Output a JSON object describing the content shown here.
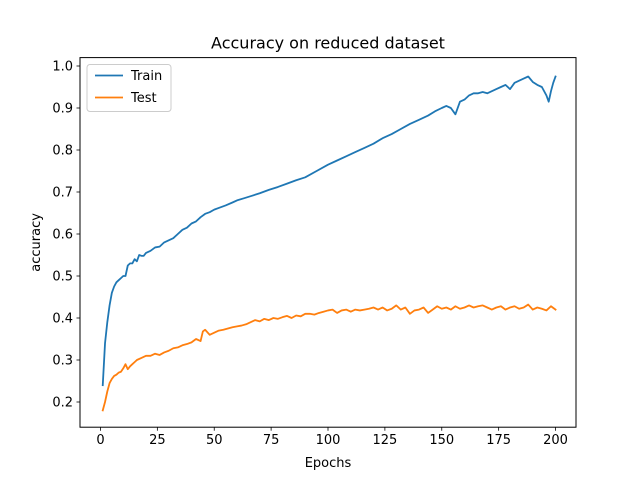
{
  "chart_data": {
    "type": "line",
    "title": "Accuracy on reduced dataset",
    "xlabel": "Epochs",
    "ylabel": "accuracy",
    "xlim": [
      -9,
      209
    ],
    "ylim": [
      0.14,
      1.02
    ],
    "xticks": [
      0,
      25,
      50,
      75,
      100,
      125,
      150,
      175,
      200
    ],
    "yticks": [
      0.2,
      0.3,
      0.4,
      0.5,
      0.6,
      0.7,
      0.8,
      0.9,
      1.0
    ],
    "ytick_labels": [
      "0.2",
      "0.3",
      "0.4",
      "0.5",
      "0.6",
      "0.7",
      "0.8",
      "0.9",
      "1.0"
    ],
    "grid": false,
    "legend_position": "top-left",
    "series": [
      {
        "name": "Train",
        "color": "#1f77b4",
        "points": [
          [
            1,
            0.24
          ],
          [
            2,
            0.34
          ],
          [
            3,
            0.39
          ],
          [
            4,
            0.43
          ],
          [
            5,
            0.46
          ],
          [
            6,
            0.475
          ],
          [
            7,
            0.485
          ],
          [
            8,
            0.49
          ],
          [
            9,
            0.495
          ],
          [
            10,
            0.5
          ],
          [
            11,
            0.5
          ],
          [
            12,
            0.525
          ],
          [
            13,
            0.53
          ],
          [
            14,
            0.53
          ],
          [
            15,
            0.54
          ],
          [
            16,
            0.535
          ],
          [
            17,
            0.55
          ],
          [
            18,
            0.548
          ],
          [
            19,
            0.548
          ],
          [
            20,
            0.555
          ],
          [
            22,
            0.56
          ],
          [
            24,
            0.568
          ],
          [
            26,
            0.57
          ],
          [
            28,
            0.58
          ],
          [
            30,
            0.585
          ],
          [
            32,
            0.59
          ],
          [
            34,
            0.6
          ],
          [
            36,
            0.61
          ],
          [
            38,
            0.615
          ],
          [
            40,
            0.625
          ],
          [
            42,
            0.63
          ],
          [
            44,
            0.64
          ],
          [
            46,
            0.648
          ],
          [
            48,
            0.652
          ],
          [
            50,
            0.658
          ],
          [
            52,
            0.662
          ],
          [
            55,
            0.668
          ],
          [
            58,
            0.675
          ],
          [
            60,
            0.68
          ],
          [
            63,
            0.685
          ],
          [
            66,
            0.69
          ],
          [
            70,
            0.697
          ],
          [
            74,
            0.705
          ],
          [
            78,
            0.712
          ],
          [
            82,
            0.72
          ],
          [
            86,
            0.728
          ],
          [
            90,
            0.735
          ],
          [
            95,
            0.75
          ],
          [
            100,
            0.765
          ],
          [
            104,
            0.775
          ],
          [
            108,
            0.785
          ],
          [
            112,
            0.795
          ],
          [
            116,
            0.805
          ],
          [
            120,
            0.815
          ],
          [
            124,
            0.828
          ],
          [
            128,
            0.838
          ],
          [
            132,
            0.85
          ],
          [
            136,
            0.862
          ],
          [
            140,
            0.872
          ],
          [
            144,
            0.882
          ],
          [
            147,
            0.892
          ],
          [
            150,
            0.9
          ],
          [
            152,
            0.905
          ],
          [
            154,
            0.9
          ],
          [
            156,
            0.885
          ],
          [
            158,
            0.915
          ],
          [
            160,
            0.92
          ],
          [
            162,
            0.93
          ],
          [
            164,
            0.935
          ],
          [
            166,
            0.935
          ],
          [
            168,
            0.938
          ],
          [
            170,
            0.935
          ],
          [
            172,
            0.94
          ],
          [
            174,
            0.945
          ],
          [
            176,
            0.95
          ],
          [
            178,
            0.955
          ],
          [
            180,
            0.945
          ],
          [
            182,
            0.96
          ],
          [
            184,
            0.965
          ],
          [
            186,
            0.97
          ],
          [
            188,
            0.975
          ],
          [
            190,
            0.962
          ],
          [
            192,
            0.955
          ],
          [
            194,
            0.95
          ],
          [
            196,
            0.93
          ],
          [
            197,
            0.915
          ],
          [
            198,
            0.94
          ],
          [
            199,
            0.96
          ],
          [
            200,
            0.975
          ]
        ]
      },
      {
        "name": "Test",
        "color": "#ff7f0e",
        "points": [
          [
            1,
            0.18
          ],
          [
            2,
            0.2
          ],
          [
            3,
            0.225
          ],
          [
            4,
            0.245
          ],
          [
            5,
            0.255
          ],
          [
            6,
            0.262
          ],
          [
            7,
            0.265
          ],
          [
            8,
            0.27
          ],
          [
            9,
            0.272
          ],
          [
            10,
            0.28
          ],
          [
            11,
            0.29
          ],
          [
            12,
            0.278
          ],
          [
            13,
            0.285
          ],
          [
            14,
            0.29
          ],
          [
            15,
            0.295
          ],
          [
            16,
            0.3
          ],
          [
            18,
            0.305
          ],
          [
            20,
            0.31
          ],
          [
            22,
            0.31
          ],
          [
            24,
            0.315
          ],
          [
            26,
            0.312
          ],
          [
            28,
            0.318
          ],
          [
            30,
            0.322
          ],
          [
            32,
            0.328
          ],
          [
            34,
            0.33
          ],
          [
            36,
            0.335
          ],
          [
            38,
            0.338
          ],
          [
            40,
            0.342
          ],
          [
            42,
            0.35
          ],
          [
            44,
            0.345
          ],
          [
            45,
            0.368
          ],
          [
            46,
            0.372
          ],
          [
            48,
            0.36
          ],
          [
            50,
            0.365
          ],
          [
            52,
            0.37
          ],
          [
            54,
            0.372
          ],
          [
            56,
            0.375
          ],
          [
            58,
            0.378
          ],
          [
            60,
            0.38
          ],
          [
            62,
            0.382
          ],
          [
            64,
            0.385
          ],
          [
            66,
            0.39
          ],
          [
            68,
            0.395
          ],
          [
            70,
            0.392
          ],
          [
            72,
            0.398
          ],
          [
            74,
            0.395
          ],
          [
            76,
            0.4
          ],
          [
            78,
            0.398
          ],
          [
            80,
            0.402
          ],
          [
            82,
            0.405
          ],
          [
            84,
            0.4
          ],
          [
            86,
            0.406
          ],
          [
            88,
            0.404
          ],
          [
            90,
            0.41
          ],
          [
            92,
            0.41
          ],
          [
            94,
            0.408
          ],
          [
            96,
            0.412
          ],
          [
            98,
            0.415
          ],
          [
            100,
            0.418
          ],
          [
            102,
            0.42
          ],
          [
            104,
            0.412
          ],
          [
            106,
            0.418
          ],
          [
            108,
            0.42
          ],
          [
            110,
            0.415
          ],
          [
            112,
            0.42
          ],
          [
            114,
            0.418
          ],
          [
            116,
            0.42
          ],
          [
            118,
            0.422
          ],
          [
            120,
            0.425
          ],
          [
            122,
            0.42
          ],
          [
            124,
            0.425
          ],
          [
            126,
            0.418
          ],
          [
            128,
            0.422
          ],
          [
            130,
            0.43
          ],
          [
            132,
            0.42
          ],
          [
            134,
            0.425
          ],
          [
            136,
            0.41
          ],
          [
            138,
            0.418
          ],
          [
            140,
            0.42
          ],
          [
            142,
            0.425
          ],
          [
            144,
            0.412
          ],
          [
            146,
            0.42
          ],
          [
            148,
            0.428
          ],
          [
            150,
            0.422
          ],
          [
            152,
            0.425
          ],
          [
            154,
            0.42
          ],
          [
            156,
            0.428
          ],
          [
            158,
            0.422
          ],
          [
            160,
            0.425
          ],
          [
            162,
            0.43
          ],
          [
            164,
            0.425
          ],
          [
            166,
            0.428
          ],
          [
            168,
            0.43
          ],
          [
            170,
            0.425
          ],
          [
            172,
            0.42
          ],
          [
            174,
            0.425
          ],
          [
            176,
            0.428
          ],
          [
            178,
            0.42
          ],
          [
            180,
            0.425
          ],
          [
            182,
            0.428
          ],
          [
            184,
            0.422
          ],
          [
            186,
            0.425
          ],
          [
            188,
            0.432
          ],
          [
            190,
            0.42
          ],
          [
            192,
            0.425
          ],
          [
            194,
            0.422
          ],
          [
            196,
            0.418
          ],
          [
            198,
            0.428
          ],
          [
            200,
            0.42
          ]
        ]
      }
    ]
  }
}
